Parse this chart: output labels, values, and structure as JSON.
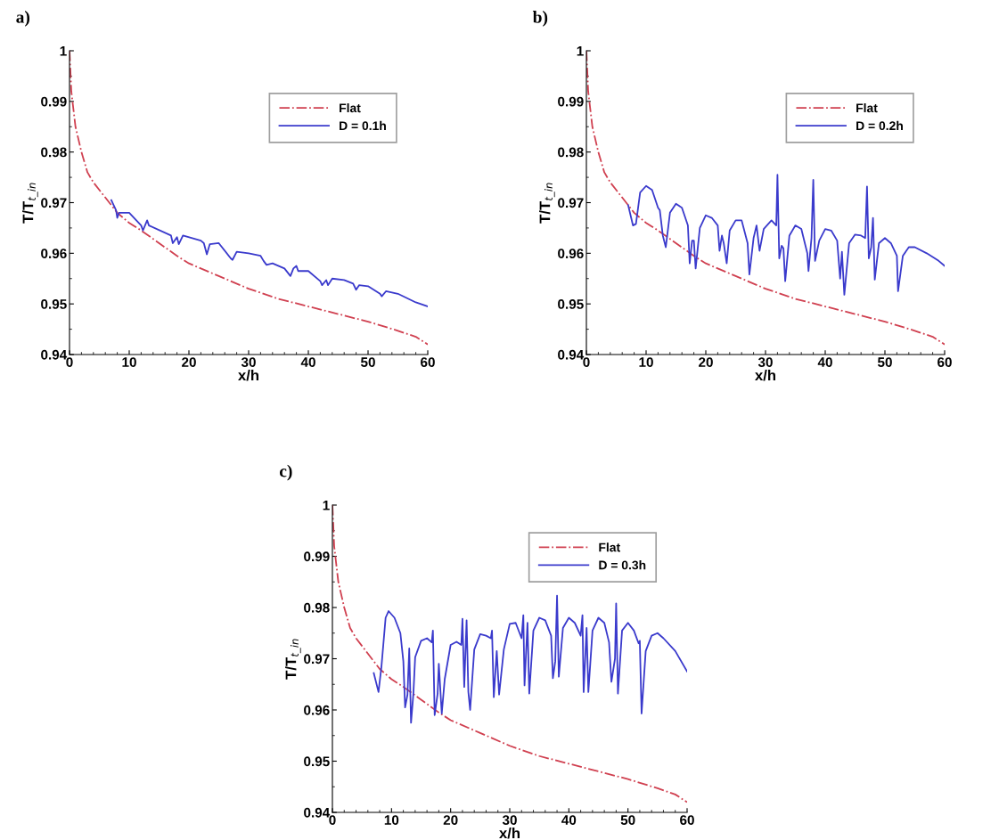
{
  "chart_data": [
    {
      "type": "line",
      "title": "a)",
      "xlabel": "x/h",
      "ylabel": "T/T$_{t_in}$",
      "xlim": [
        0,
        60
      ],
      "xticks": [
        0,
        10,
        20,
        30,
        40,
        50,
        60
      ],
      "ylim": [
        0.94,
        1
      ],
      "yticks": [
        0.94,
        0.95,
        0.96,
        0.97,
        0.98,
        0.99,
        1
      ],
      "legend": "top right",
      "grid": false,
      "series": [
        {
          "name": "Flat",
          "color": "#d04050",
          "line_style": "dashdot",
          "x": [
            0,
            0.3,
            1,
            2,
            3,
            4,
            5,
            6,
            8,
            10,
            12,
            15,
            18,
            20,
            25,
            30,
            35,
            40,
            45,
            50,
            55,
            58,
            60
          ],
          "values": [
            1.0,
            0.992,
            0.985,
            0.98,
            0.976,
            0.974,
            0.9725,
            0.971,
            0.968,
            0.966,
            0.9645,
            0.962,
            0.9595,
            0.958,
            0.9555,
            0.953,
            0.951,
            0.9495,
            0.948,
            0.9465,
            0.9447,
            0.9435,
            0.942
          ]
        },
        {
          "name": "D = 0.1h",
          "color": "#3a3acc",
          "line_style": "solid",
          "x": [
            7,
            7.8,
            8,
            8.3,
            10,
            12,
            12.3,
            13,
            13.3,
            17,
            17.3,
            18,
            18.3,
            19,
            22,
            22.5,
            23,
            23.5,
            25,
            27,
            27.3,
            28,
            30,
            32,
            32.5,
            33,
            34,
            36,
            37,
            37.5,
            38,
            38.3,
            40,
            42,
            42.3,
            43,
            43.3,
            44,
            46,
            47.5,
            48,
            48.5,
            50,
            52,
            52.3,
            53,
            55,
            58,
            60
          ],
          "values": [
            0.9705,
            0.9685,
            0.967,
            0.968,
            0.968,
            0.9655,
            0.9645,
            0.9665,
            0.9655,
            0.9635,
            0.962,
            0.9632,
            0.9618,
            0.9635,
            0.9625,
            0.962,
            0.9598,
            0.9618,
            0.962,
            0.959,
            0.9587,
            0.9603,
            0.96,
            0.9595,
            0.9585,
            0.9577,
            0.958,
            0.957,
            0.9555,
            0.957,
            0.9575,
            0.9565,
            0.9565,
            0.9545,
            0.9537,
            0.9547,
            0.9537,
            0.955,
            0.9547,
            0.954,
            0.9528,
            0.9537,
            0.9535,
            0.952,
            0.9515,
            0.9525,
            0.952,
            0.9503,
            0.9495
          ]
        }
      ]
    },
    {
      "type": "line",
      "title": "b)",
      "xlabel": "x/h",
      "ylabel": "T/T$_{t_in}$",
      "xlim": [
        0,
        60
      ],
      "xticks": [
        0,
        10,
        20,
        30,
        40,
        50,
        60
      ],
      "ylim": [
        0.94,
        1
      ],
      "yticks": [
        0.94,
        0.95,
        0.96,
        0.97,
        0.98,
        0.99,
        1
      ],
      "legend": "top right",
      "grid": false,
      "series": [
        {
          "name": "Flat",
          "color": "#d04050",
          "line_style": "dashdot",
          "x": [
            0,
            0.3,
            1,
            2,
            3,
            4,
            5,
            6,
            8,
            10,
            12,
            15,
            18,
            20,
            25,
            30,
            35,
            40,
            45,
            50,
            55,
            58,
            60
          ],
          "values": [
            1.0,
            0.992,
            0.985,
            0.98,
            0.976,
            0.974,
            0.9725,
            0.971,
            0.968,
            0.966,
            0.9645,
            0.962,
            0.9595,
            0.958,
            0.9555,
            0.953,
            0.951,
            0.9495,
            0.948,
            0.9465,
            0.9447,
            0.9435,
            0.942
          ]
        },
        {
          "name": "D = 0.2h",
          "color": "#3a3acc",
          "line_style": "solid",
          "x": [
            7,
            7.8,
            8.3,
            9,
            10,
            11,
            12,
            12.3,
            12.8,
            13.3,
            14,
            15,
            16,
            17,
            17.3,
            17.7,
            18,
            18.3,
            19,
            20,
            21,
            22,
            22.3,
            22.7,
            23,
            23.5,
            24,
            25,
            26,
            27,
            27.3,
            28,
            28.5,
            29,
            29.7,
            31,
            31.8,
            32,
            32.3,
            32.7,
            33,
            33.3,
            34,
            35,
            36,
            37,
            37.2,
            37.7,
            38,
            38.3,
            39,
            40,
            41,
            42,
            42.5,
            42.8,
            43.2,
            44,
            45,
            46,
            46.7,
            47,
            47.3,
            47.7,
            48,
            48.3,
            49,
            50,
            51,
            52,
            52.2,
            53,
            54,
            55,
            57,
            59,
            60
          ],
          "values": [
            0.9695,
            0.9655,
            0.9658,
            0.972,
            0.9733,
            0.9725,
            0.969,
            0.9685,
            0.9635,
            0.9612,
            0.968,
            0.9698,
            0.969,
            0.9655,
            0.958,
            0.9625,
            0.9625,
            0.957,
            0.965,
            0.9675,
            0.967,
            0.9655,
            0.9605,
            0.9635,
            0.962,
            0.958,
            0.9645,
            0.9665,
            0.9665,
            0.962,
            0.9558,
            0.963,
            0.9655,
            0.9605,
            0.9648,
            0.9665,
            0.9655,
            0.9755,
            0.959,
            0.9615,
            0.961,
            0.9545,
            0.9635,
            0.9655,
            0.9648,
            0.96,
            0.9565,
            0.963,
            0.9745,
            0.9585,
            0.9625,
            0.9648,
            0.9645,
            0.9625,
            0.955,
            0.9603,
            0.9518,
            0.962,
            0.9637,
            0.9635,
            0.963,
            0.9732,
            0.959,
            0.9612,
            0.967,
            0.9548,
            0.962,
            0.963,
            0.962,
            0.9595,
            0.9525,
            0.9595,
            0.9612,
            0.9612,
            0.96,
            0.9585,
            0.9575
          ]
        }
      ]
    },
    {
      "type": "line",
      "title": "c)",
      "xlabel": "x/h",
      "ylabel": "T/T$_{t_in}$",
      "xlim": [
        0,
        60
      ],
      "xticks": [
        0,
        10,
        20,
        30,
        40,
        50,
        60
      ],
      "ylim": [
        0.94,
        1
      ],
      "yticks": [
        0.94,
        0.95,
        0.96,
        0.97,
        0.98,
        0.99,
        1
      ],
      "legend": "top right",
      "grid": false,
      "series": [
        {
          "name": "Flat",
          "color": "#d04050",
          "line_style": "dashdot",
          "x": [
            0,
            0.3,
            1,
            2,
            3,
            4,
            5,
            6,
            8,
            10,
            12,
            15,
            18,
            20,
            25,
            30,
            35,
            40,
            45,
            50,
            55,
            58,
            60
          ],
          "values": [
            1.0,
            0.992,
            0.985,
            0.98,
            0.976,
            0.974,
            0.9725,
            0.971,
            0.968,
            0.966,
            0.9645,
            0.962,
            0.9595,
            0.958,
            0.9555,
            0.953,
            0.951,
            0.9495,
            0.948,
            0.9465,
            0.9447,
            0.9435,
            0.942
          ]
        },
        {
          "name": "D = 0.3h",
          "color": "#3a3acc",
          "line_style": "solid",
          "x": [
            7,
            7.8,
            8.3,
            9,
            9.5,
            10.5,
            11.5,
            12,
            12.3,
            12.7,
            13,
            13.3,
            13.7,
            14,
            15,
            16,
            16.8,
            17,
            17.3,
            17.8,
            18,
            18.5,
            19,
            20,
            21,
            21.8,
            22,
            22.3,
            22.7,
            23,
            23.3,
            24,
            25,
            26,
            26.8,
            27,
            27.3,
            27.8,
            28.2,
            29,
            30,
            31,
            32,
            32.3,
            32.5,
            33,
            33.3,
            34,
            35,
            36,
            37,
            37.3,
            37.7,
            38,
            38.3,
            39,
            40,
            41,
            42,
            42.3,
            42.5,
            43,
            43.3,
            44,
            45,
            46,
            46.8,
            47.2,
            47.8,
            48,
            48.3,
            49,
            50,
            51,
            51.8,
            52,
            52.3,
            53,
            54,
            55,
            56,
            58,
            60
          ],
          "values": [
            0.9672,
            0.9635,
            0.9685,
            0.978,
            0.9793,
            0.978,
            0.975,
            0.9695,
            0.9605,
            0.963,
            0.972,
            0.9575,
            0.9632,
            0.9703,
            0.9735,
            0.974,
            0.9732,
            0.9755,
            0.959,
            0.9632,
            0.969,
            0.9593,
            0.966,
            0.9727,
            0.9733,
            0.9727,
            0.9778,
            0.9645,
            0.9775,
            0.9635,
            0.96,
            0.9718,
            0.9748,
            0.9745,
            0.974,
            0.9755,
            0.9625,
            0.9715,
            0.963,
            0.9718,
            0.9768,
            0.977,
            0.974,
            0.9785,
            0.9648,
            0.977,
            0.9632,
            0.9755,
            0.978,
            0.9775,
            0.9745,
            0.9662,
            0.9695,
            0.9823,
            0.9665,
            0.976,
            0.978,
            0.977,
            0.9745,
            0.9785,
            0.9635,
            0.976,
            0.9635,
            0.9755,
            0.978,
            0.977,
            0.9732,
            0.9655,
            0.97,
            0.9808,
            0.9632,
            0.9755,
            0.977,
            0.9755,
            0.973,
            0.9735,
            0.9593,
            0.9715,
            0.9745,
            0.975,
            0.974,
            0.9715,
            0.9675
          ]
        }
      ]
    }
  ]
}
